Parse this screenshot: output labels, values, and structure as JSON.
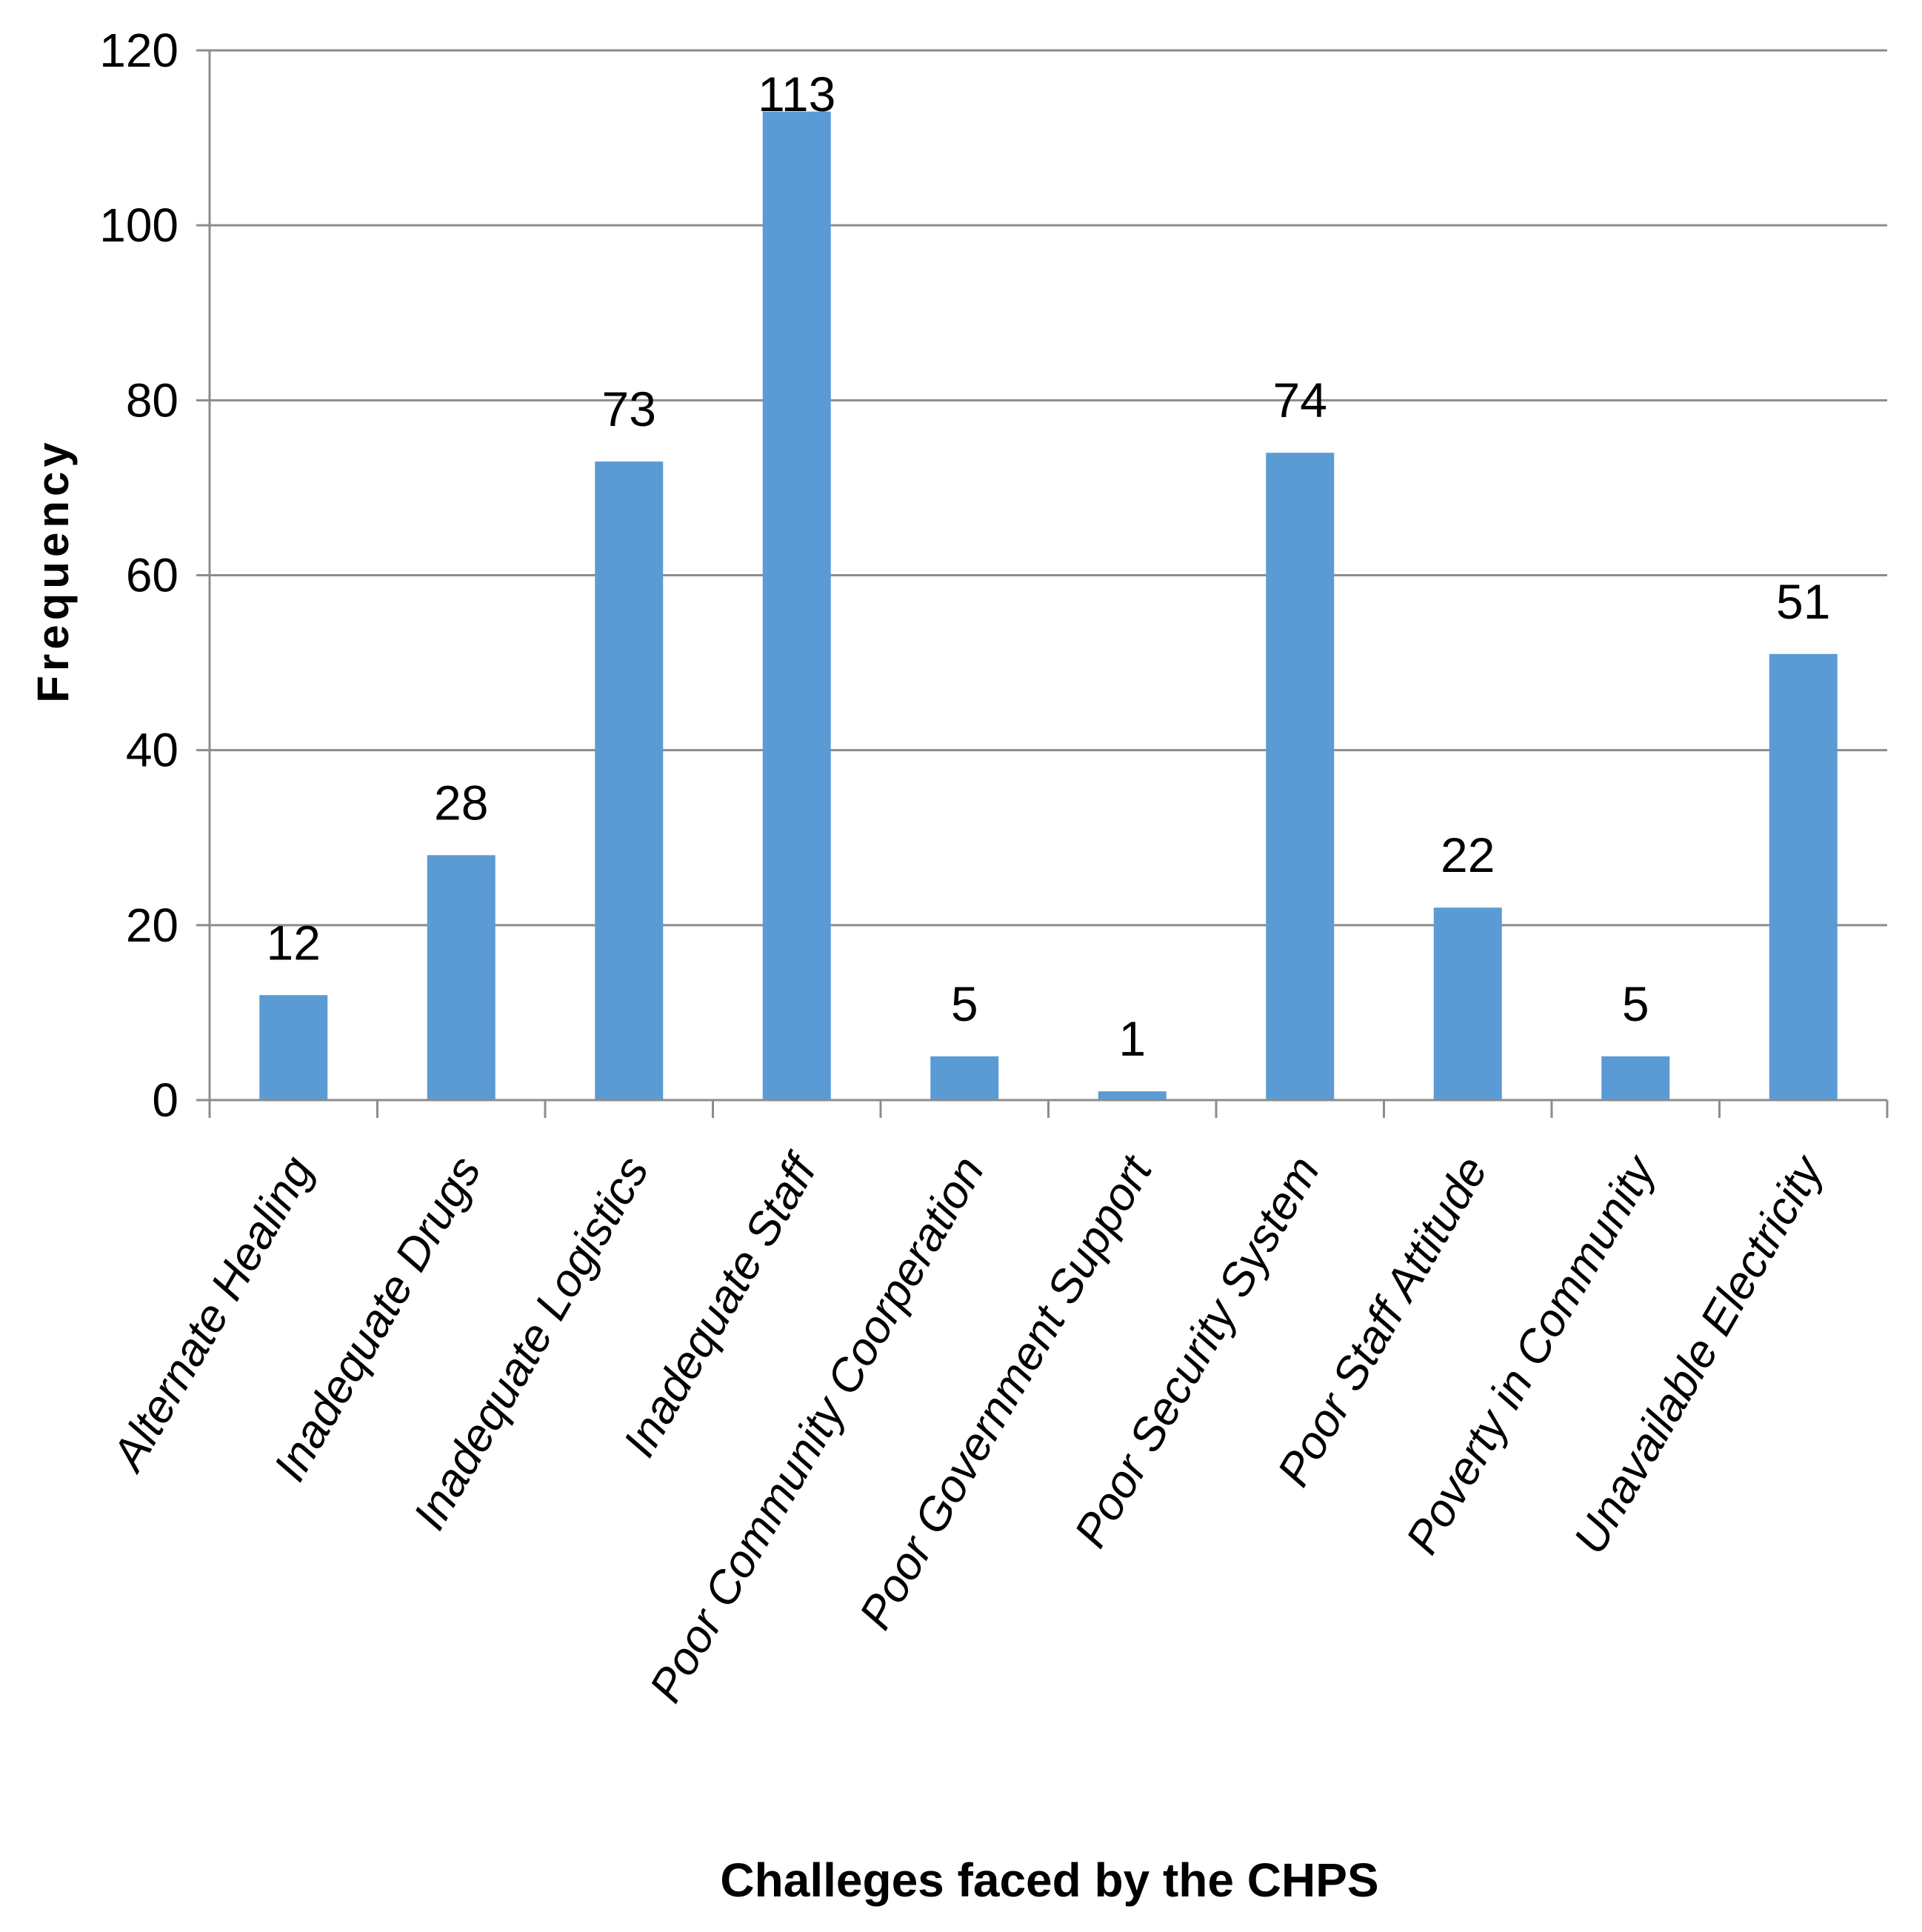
{
  "chart_data": {
    "type": "bar",
    "title": "",
    "xlabel": "Challeges faced by the CHPS",
    "ylabel": "Frequency",
    "ylim": [
      0,
      120
    ],
    "yticks": [
      0,
      20,
      40,
      60,
      80,
      100,
      120
    ],
    "grid": true,
    "legend": "none",
    "bar_color": "#5b9bd5",
    "categories": [
      "Alternate Healing",
      "Inadequate Drugs",
      "Inadequate Logistics",
      "Inadequate Staff",
      "Poor Community Coorperation",
      "Poor Government Support",
      "Poor Security System",
      "Poor Staff Attitude",
      "Poverty in Community",
      "Unavailable Electricity"
    ],
    "values": [
      12,
      28,
      73,
      113,
      5,
      1,
      74,
      22,
      5,
      51
    ]
  }
}
